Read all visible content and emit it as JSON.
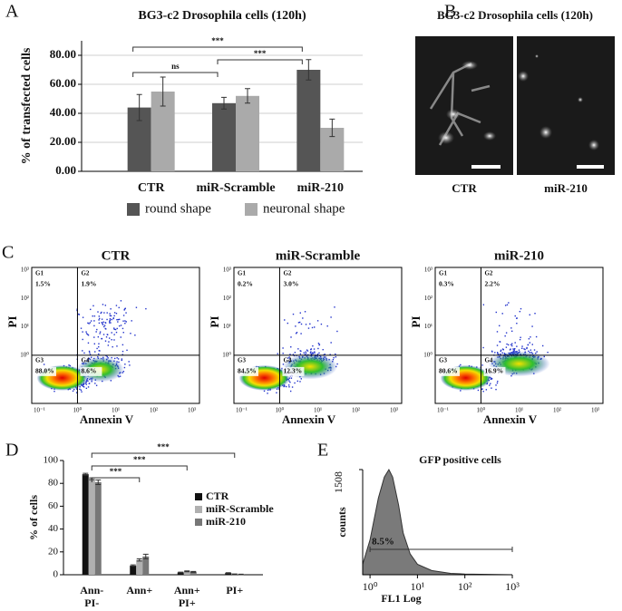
{
  "panels": [
    "A",
    "B",
    "C",
    "D",
    "E"
  ],
  "chart_data": [
    {
      "type": "bar",
      "title": "BG3-c2 Drosophila cells (120h)",
      "y_label": "% of transfected cells",
      "categories": [
        "CTR",
        "miR-Scramble",
        "miR-210"
      ],
      "series": [
        {
          "name": "round shape",
          "color": "#555555",
          "values": [
            44,
            47,
            70
          ],
          "errors": [
            9,
            4,
            7
          ]
        },
        {
          "name": "neuronal shape",
          "color": "#aaaaaa",
          "values": [
            55,
            52,
            30
          ],
          "errors": [
            10,
            5,
            6
          ]
        }
      ],
      "ylim": [
        0,
        90
      ],
      "yticks": [
        {
          "value": 0,
          "label": "0.00"
        },
        {
          "value": 20,
          "label": "20.00"
        },
        {
          "value": 40,
          "label": "40.00"
        },
        {
          "value": 60,
          "label": "60.00"
        },
        {
          "value": 80,
          "label": "80.00"
        }
      ],
      "grid": true,
      "legend": "bottom",
      "annotations": [
        "***",
        "ns",
        "***"
      ]
    },
    {
      "type": "bar",
      "y_label": "% of cells",
      "categories": [
        [
          "Ann-",
          "PI-"
        ],
        [
          "Ann+"
        ],
        [
          "Ann+",
          "PI+"
        ],
        [
          "PI+"
        ]
      ],
      "series": [
        {
          "name": "CTR",
          "color": "#111111",
          "values": [
            88,
            8,
            2,
            1.5
          ],
          "errors": [
            0.8,
            0.6,
            0.3,
            0.3
          ]
        },
        {
          "name": "miR-Scramble",
          "color": "#b0b0b0",
          "values": [
            84,
            13,
            3,
            0.5
          ],
          "errors": [
            0.8,
            1,
            0.4,
            0.2
          ]
        },
        {
          "name": "miR-210",
          "color": "#777777",
          "values": [
            81,
            16,
            2.5,
            0.3
          ],
          "errors": [
            2,
            2,
            0.4,
            0.2
          ]
        }
      ],
      "ylim": [
        0,
        100
      ],
      "yticks": [
        0,
        20,
        40,
        60,
        80,
        100
      ],
      "grid": false,
      "legend": "upper right",
      "annotations": [
        "***",
        "***",
        "***"
      ]
    },
    {
      "type": "area",
      "title": "GFP positive cells",
      "x_label": "FL1 Log",
      "y_label": "counts",
      "color": "#7a7a7a",
      "log_x": true,
      "x": [
        0.7,
        1,
        1.5,
        2,
        2.5,
        3,
        4,
        5,
        7,
        10,
        20,
        50,
        100,
        1000
      ],
      "values": [
        150,
        500,
        1100,
        1400,
        1508,
        1400,
        1000,
        600,
        300,
        150,
        60,
        20,
        10,
        0
      ],
      "xlim": [
        0.7,
        1000
      ],
      "xticks": [
        {
          "value": 1,
          "label": "10⁰"
        },
        {
          "value": 10,
          "label": "10¹"
        },
        {
          "value": 100,
          "label": "10²"
        },
        {
          "value": 1000,
          "label": "10³"
        }
      ],
      "ylim": [
        0,
        1508
      ],
      "yticks": [
        1508
      ],
      "gate": [
        1,
        1000
      ],
      "gate_label": "8.5%"
    }
  ],
  "microscopy": {
    "title": "BG3-c2 Drosophila cells (120h)",
    "labels": [
      "CTR",
      "miR-210"
    ]
  },
  "flow_cytometry": {
    "x_label": "Annexin V",
    "y_label": "PI",
    "x_ticks": [
      "10⁻¹",
      "10⁰",
      "10¹",
      "10²",
      "10³"
    ],
    "y_ticks": [
      "10⁰",
      "10¹",
      "10²",
      "10³"
    ],
    "plots": [
      {
        "title": "CTR",
        "gates": [
          {
            "name": "G1",
            "percent": "1.5%"
          },
          {
            "name": "G2",
            "percent": "1.9%"
          },
          {
            "name": "G3",
            "percent": "88.0%"
          },
          {
            "name": "G4",
            "percent": "8.6%"
          }
        ]
      },
      {
        "title": "miR-Scramble",
        "gates": [
          {
            "name": "G1",
            "percent": "0.2%"
          },
          {
            "name": "G2",
            "percent": "3.0%"
          },
          {
            "name": "G3",
            "percent": "84.5%"
          },
          {
            "name": "G4",
            "percent": "12.3%"
          }
        ]
      },
      {
        "title": "miR-210",
        "gates": [
          {
            "name": "G1",
            "percent": "0.3%"
          },
          {
            "name": "G2",
            "percent": "2.2%"
          },
          {
            "name": "G3",
            "percent": "80.6%"
          },
          {
            "name": "G4",
            "percent": "16.9%"
          }
        ]
      }
    ]
  }
}
